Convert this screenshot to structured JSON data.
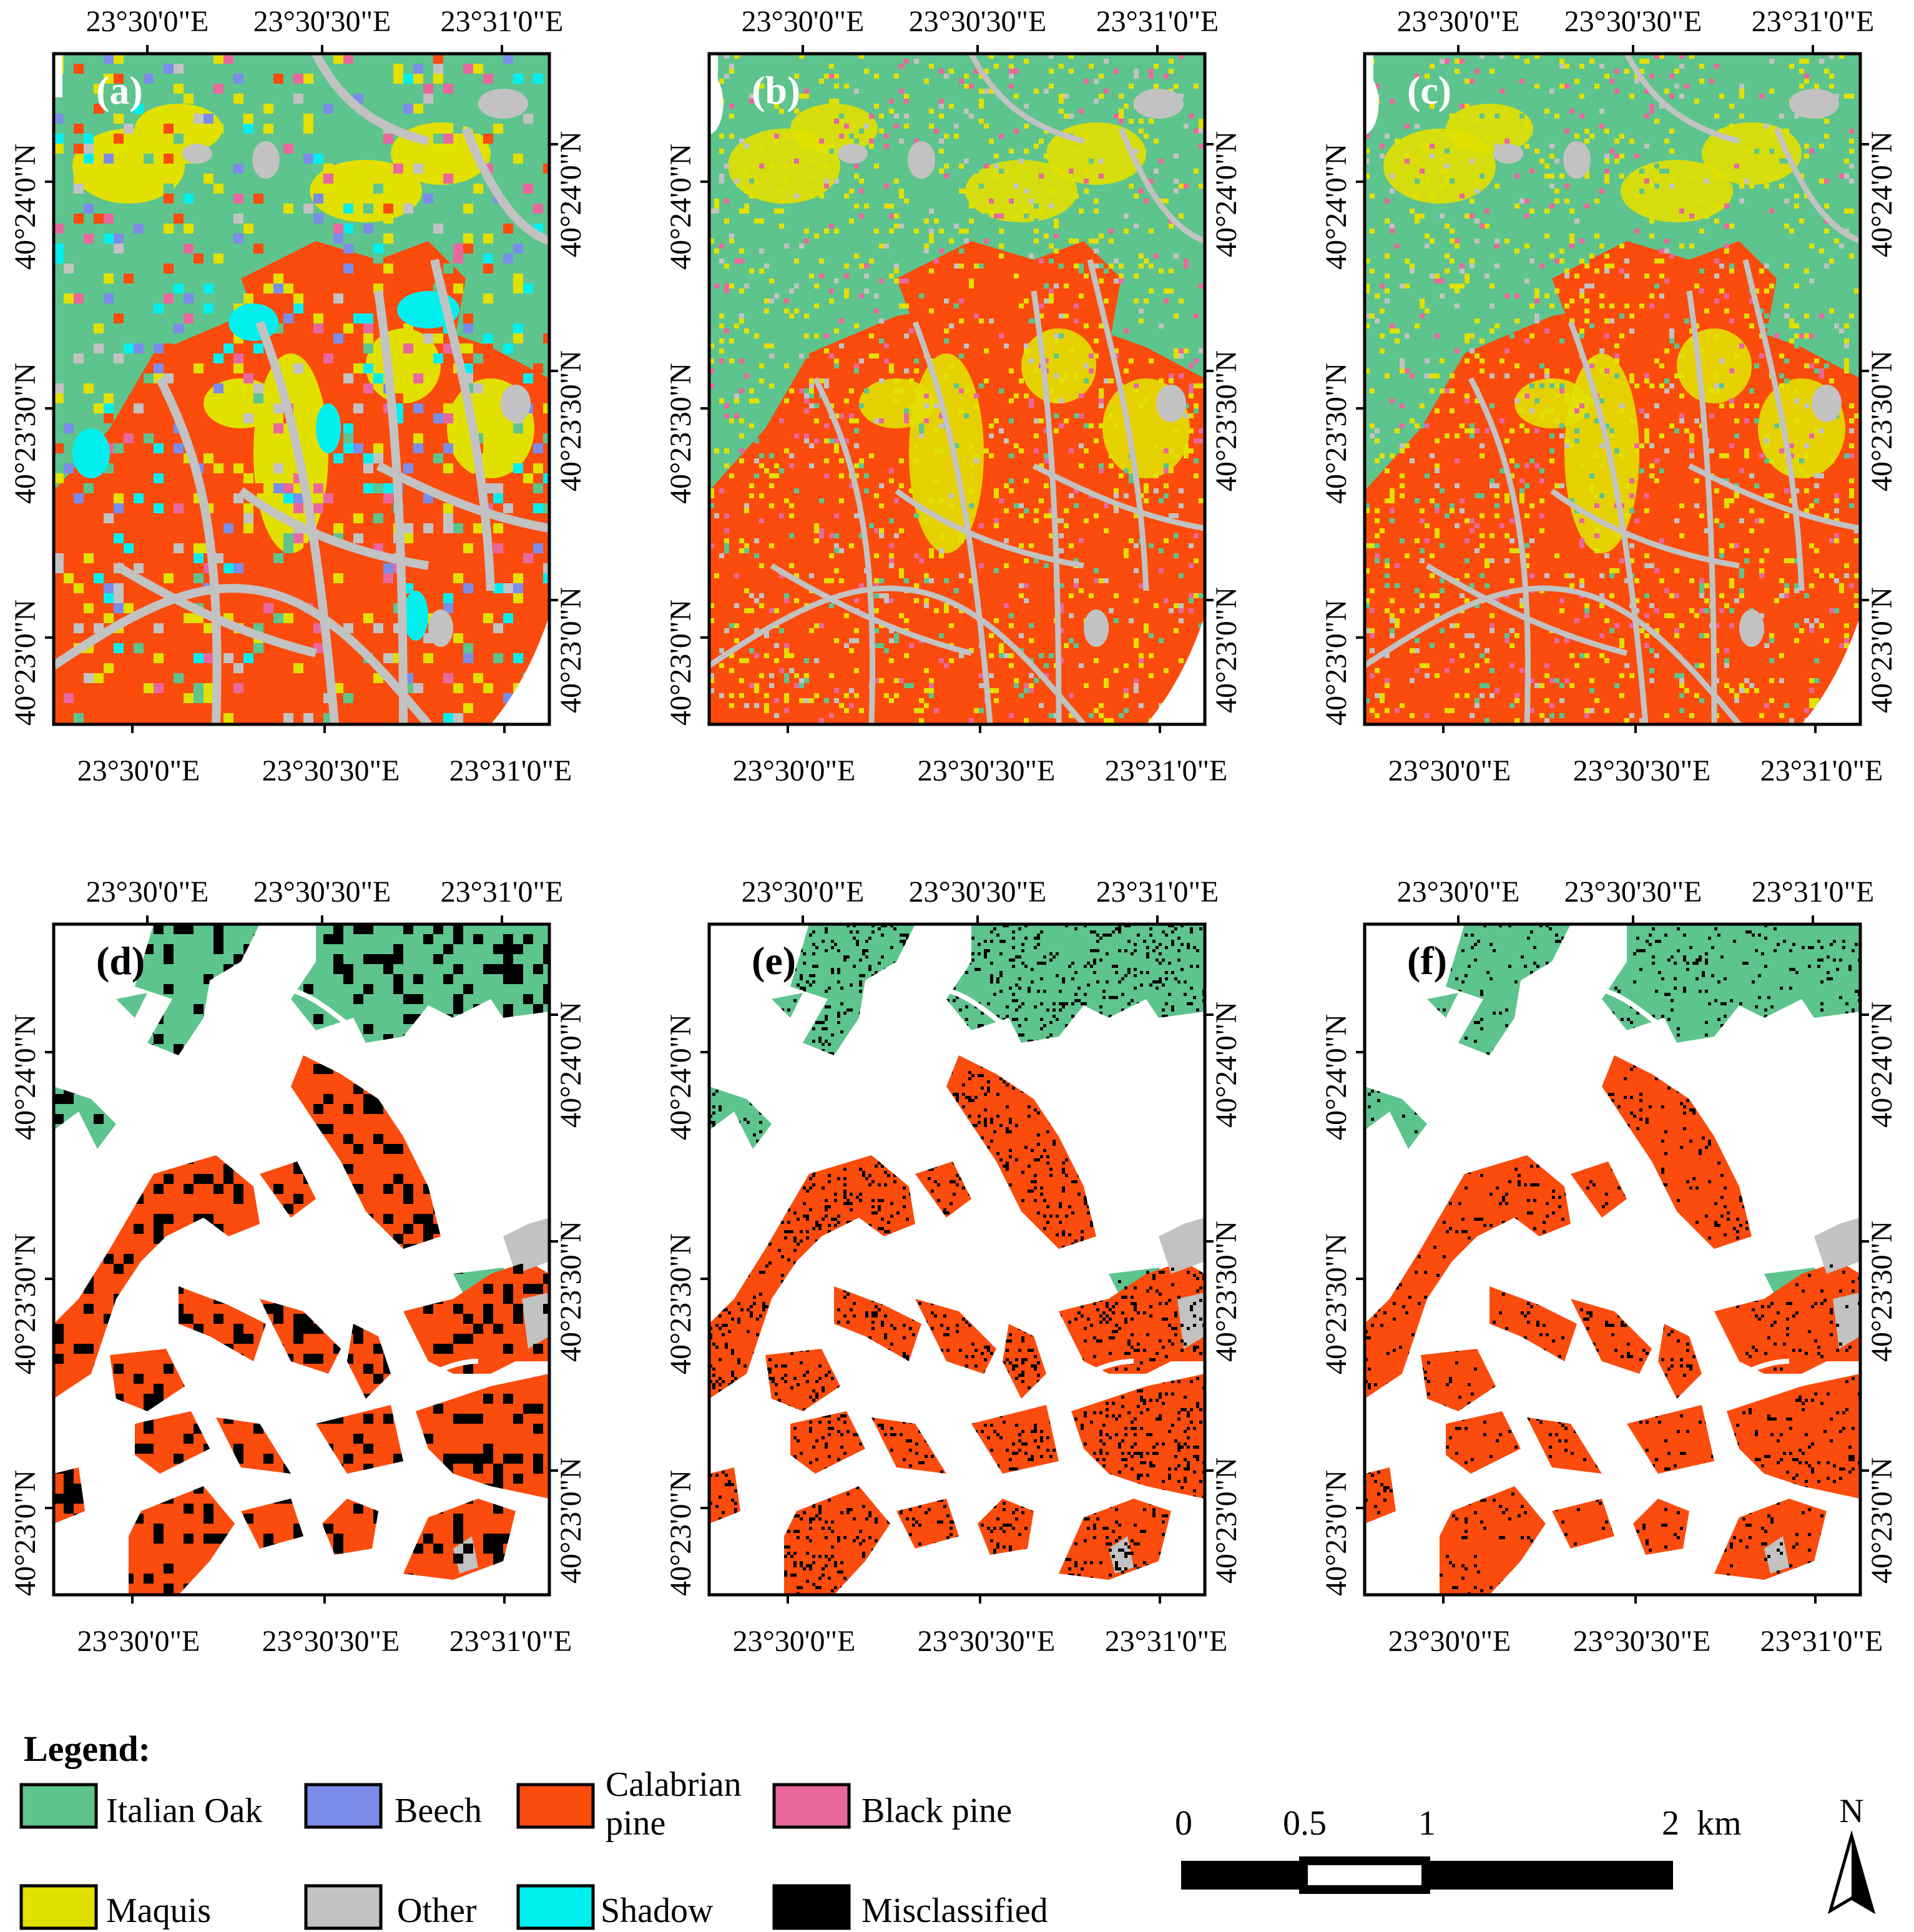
{
  "colors": {
    "italian_oak": "#5ec48d",
    "beech": "#7b8de8",
    "calabrian_pine": "#fb4b0d",
    "black_pine": "#e8689e",
    "maquis": "#e2e000",
    "other": "#c2c2c2",
    "shadow": "#00f0f0",
    "misclassified": "#000000",
    "background": "#ffffff"
  },
  "axes": {
    "top_ticks": [
      "23°30'0\"E",
      "23°30'30\"E",
      "23°31'0\"E"
    ],
    "bottom_ticks": [
      "23°30'0\"E",
      "23°30'30\"E",
      "23°31'0\"E"
    ],
    "lat_ticks": [
      "40°24'0\"N",
      "40°23'30\"N",
      "40°23'0\"N"
    ]
  },
  "panels": [
    {
      "label": "(a)",
      "type": "classification"
    },
    {
      "label": "(b)",
      "type": "classification"
    },
    {
      "label": "(c)",
      "type": "classification"
    },
    {
      "label": "(d)",
      "type": "validation"
    },
    {
      "label": "(e)",
      "type": "validation"
    },
    {
      "label": "(f)",
      "type": "validation"
    }
  ],
  "legend": {
    "title": "Legend:",
    "items": [
      {
        "label": "Italian Oak",
        "color_key": "italian_oak"
      },
      {
        "label": "Beech",
        "color_key": "beech"
      },
      {
        "label": "Calabrian pine",
        "color_key": "calabrian_pine"
      },
      {
        "label": "Black pine",
        "color_key": "black_pine"
      },
      {
        "label": "Maquis",
        "color_key": "maquis"
      },
      {
        "label": "Other",
        "color_key": "other"
      },
      {
        "label": "Shadow",
        "color_key": "shadow"
      },
      {
        "label": "Misclassified",
        "color_key": "misclassified"
      }
    ]
  },
  "scale_bar": {
    "labels": [
      "0",
      "0.5",
      "1",
      "2"
    ],
    "values_km": [
      0,
      0.5,
      1,
      2
    ],
    "unit": "km"
  },
  "north_arrow": {
    "label": "N"
  }
}
